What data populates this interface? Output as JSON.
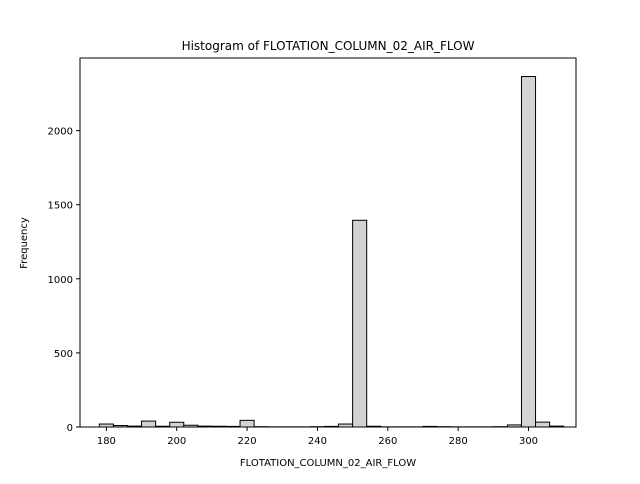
{
  "chart_data": {
    "type": "bar",
    "title": "Histogram of FLOTATION_COLUMN_02_AIR_FLOW",
    "xlabel": "FLOTATION_COLUMN_02_AIR_FLOW",
    "ylabel": "Frequency",
    "xlim": [
      172.5,
      313.5
    ],
    "ylim": [
      0,
      2490
    ],
    "xticks": [
      180,
      200,
      220,
      240,
      260,
      280,
      300
    ],
    "yticks": [
      0,
      500,
      1000,
      1500,
      2000
    ],
    "grid": false,
    "legend": "none",
    "bar_color": "#d3d3d3",
    "edge_color": "#000000",
    "bins": [
      {
        "x0": 178.0,
        "x1": 182.0,
        "count": 20
      },
      {
        "x0": 182.0,
        "x1": 186.0,
        "count": 10
      },
      {
        "x0": 186.0,
        "x1": 190.0,
        "count": 6
      },
      {
        "x0": 190.0,
        "x1": 194.0,
        "count": 40
      },
      {
        "x0": 194.0,
        "x1": 198.0,
        "count": 5
      },
      {
        "x0": 198.0,
        "x1": 202.0,
        "count": 32
      },
      {
        "x0": 202.0,
        "x1": 206.0,
        "count": 12
      },
      {
        "x0": 206.0,
        "x1": 210.0,
        "count": 6
      },
      {
        "x0": 210.0,
        "x1": 214.0,
        "count": 5
      },
      {
        "x0": 214.0,
        "x1": 218.0,
        "count": 4
      },
      {
        "x0": 218.0,
        "x1": 222.0,
        "count": 45
      },
      {
        "x0": 222.0,
        "x1": 226.0,
        "count": 2
      },
      {
        "x0": 226.0,
        "x1": 230.0,
        "count": 1
      },
      {
        "x0": 230.0,
        "x1": 234.0,
        "count": 1
      },
      {
        "x0": 234.0,
        "x1": 238.0,
        "count": 1
      },
      {
        "x0": 238.0,
        "x1": 242.0,
        "count": 2
      },
      {
        "x0": 242.0,
        "x1": 246.0,
        "count": 4
      },
      {
        "x0": 246.0,
        "x1": 250.0,
        "count": 20
      },
      {
        "x0": 250.0,
        "x1": 254.0,
        "count": 1395
      },
      {
        "x0": 254.0,
        "x1": 258.0,
        "count": 5
      },
      {
        "x0": 258.0,
        "x1": 262.0,
        "count": 1
      },
      {
        "x0": 262.0,
        "x1": 266.0,
        "count": 1
      },
      {
        "x0": 266.0,
        "x1": 270.0,
        "count": 1
      },
      {
        "x0": 270.0,
        "x1": 274.0,
        "count": 4
      },
      {
        "x0": 274.0,
        "x1": 278.0,
        "count": 2
      },
      {
        "x0": 278.0,
        "x1": 282.0,
        "count": 1
      },
      {
        "x0": 282.0,
        "x1": 286.0,
        "count": 1
      },
      {
        "x0": 286.0,
        "x1": 290.0,
        "count": 1
      },
      {
        "x0": 290.0,
        "x1": 294.0,
        "count": 2
      },
      {
        "x0": 294.0,
        "x1": 298.0,
        "count": 14
      },
      {
        "x0": 298.0,
        "x1": 302.0,
        "count": 2365
      },
      {
        "x0": 302.0,
        "x1": 306.0,
        "count": 33
      },
      {
        "x0": 306.0,
        "x1": 310.0,
        "count": 6
      }
    ]
  }
}
